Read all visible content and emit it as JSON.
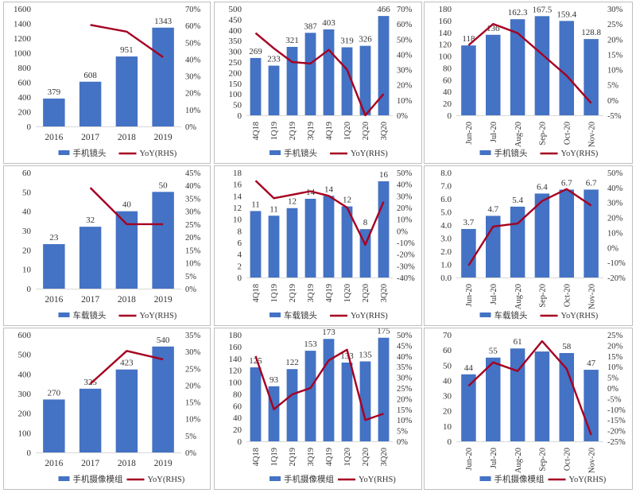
{
  "colors": {
    "bar": "#4472C4",
    "line": "#A50021",
    "axis": "#d9d9d9",
    "text": "#333333"
  },
  "chart_data": [
    {
      "type": "bar",
      "title": "",
      "xlabel": "",
      "ylabel": "",
      "categories": [
        "2016",
        "2017",
        "2018",
        "2019"
      ],
      "series": [
        {
          "name": "手机镜头",
          "kind": "bar",
          "axis": "left",
          "values": [
            379,
            608,
            951,
            1343
          ],
          "labels": [
            "379",
            "608",
            "951",
            "1343"
          ]
        },
        {
          "name": "YoY(RHS)",
          "kind": "line",
          "axis": "right",
          "values": [
            null,
            60.4,
            56.4,
            41.2
          ]
        }
      ],
      "ylim": [
        0,
        1600
      ],
      "yticks": [
        "0",
        "200",
        "400",
        "600",
        "800",
        "1000",
        "1200",
        "1400",
        "1600"
      ],
      "y2lim": [
        0,
        70
      ],
      "y2ticks": [
        "0%",
        "10%",
        "20%",
        "30%",
        "40%",
        "50%",
        "60%",
        "70%"
      ],
      "rotate_x": false,
      "legend": "bottom"
    },
    {
      "type": "bar",
      "title": "",
      "xlabel": "",
      "ylabel": "",
      "categories": [
        "4Q18",
        "1Q19",
        "2Q19",
        "3Q19",
        "4Q19",
        "1Q20",
        "2Q20",
        "3Q20"
      ],
      "series": [
        {
          "name": "手机镜头",
          "kind": "bar",
          "axis": "left",
          "values": [
            269,
            233,
            321,
            387,
            403,
            319,
            326,
            466
          ],
          "labels": [
            "269",
            "233",
            "321",
            "387",
            "403",
            "319",
            "326",
            "466"
          ]
        },
        {
          "name": "YoY(RHS)",
          "kind": "line",
          "axis": "right",
          "values": [
            54,
            44,
            35,
            34,
            43,
            30,
            0,
            14
          ]
        }
      ],
      "ylim": [
        0,
        500
      ],
      "yticks": [
        "0",
        "50",
        "100",
        "150",
        "200",
        "250",
        "300",
        "350",
        "400",
        "450",
        "500"
      ],
      "y2lim": [
        0,
        70
      ],
      "y2ticks": [
        "0%",
        "10%",
        "20%",
        "30%",
        "40%",
        "50%",
        "60%",
        "70%"
      ],
      "rotate_x": true,
      "legend": "bottom"
    },
    {
      "type": "bar",
      "title": "",
      "xlabel": "",
      "ylabel": "",
      "categories": [
        "Jun-20",
        "Jul-20",
        "Aug-20",
        "Sep-20",
        "Oct-20",
        "Nov-20"
      ],
      "series": [
        {
          "name": "手机镜头",
          "kind": "bar",
          "axis": "left",
          "values": [
            118,
            136,
            162.3,
            167.5,
            159.4,
            128.8
          ],
          "labels": [
            "118",
            "136",
            "162.3",
            "167.5",
            "159.4",
            "128.8"
          ]
        },
        {
          "name": "YoY(RHS)",
          "kind": "line",
          "axis": "right",
          "values": [
            18,
            25,
            22,
            15,
            8,
            -1
          ]
        }
      ],
      "ylim": [
        0,
        180
      ],
      "yticks": [
        "0",
        "20",
        "40",
        "60",
        "80",
        "100",
        "120",
        "140",
        "160",
        "180"
      ],
      "y2lim": [
        -5,
        30
      ],
      "y2ticks": [
        "-5%",
        "0%",
        "5%",
        "10%",
        "15%",
        "20%",
        "25%",
        "30%"
      ],
      "rotate_x": true,
      "legend": "bottom"
    },
    {
      "type": "bar",
      "title": "",
      "xlabel": "",
      "ylabel": "",
      "categories": [
        "2016",
        "2017",
        "2018",
        "2019"
      ],
      "series": [
        {
          "name": "车载镜头",
          "kind": "bar",
          "axis": "left",
          "values": [
            23,
            32,
            40,
            50
          ],
          "labels": [
            "23",
            "32",
            "40",
            "50"
          ]
        },
        {
          "name": "YoY(RHS)",
          "kind": "line",
          "axis": "right",
          "values": [
            null,
            39.1,
            25,
            25
          ]
        }
      ],
      "ylim": [
        0,
        60
      ],
      "yticks": [
        "0",
        "10",
        "20",
        "30",
        "40",
        "50",
        "60"
      ],
      "y2lim": [
        0,
        45
      ],
      "y2ticks": [
        "0%",
        "5%",
        "10%",
        "15%",
        "20%",
        "25%",
        "30%",
        "35%",
        "40%",
        "45%"
      ],
      "rotate_x": false,
      "legend": "bottom"
    },
    {
      "type": "bar",
      "title": "",
      "xlabel": "",
      "ylabel": "",
      "categories": [
        "4Q18",
        "1Q19",
        "2Q19",
        "3Q19",
        "4Q19",
        "1Q20",
        "2Q20",
        "3Q20"
      ],
      "series": [
        {
          "name": "车载镜头",
          "kind": "bar",
          "axis": "left",
          "values": [
            11.4,
            10.6,
            11.9,
            13.5,
            14,
            12.2,
            8.3,
            16.5
          ],
          "labels": [
            "11",
            "11",
            "12",
            "14",
            "14",
            "12",
            "8",
            "16"
          ]
        },
        {
          "name": "YoY(RHS)",
          "kind": "line",
          "axis": "right",
          "values": [
            43,
            28,
            31,
            34,
            30,
            20,
            -12,
            25
          ]
        }
      ],
      "ylim": [
        0,
        18
      ],
      "yticks": [
        "0",
        "2",
        "4",
        "6",
        "8",
        "10",
        "12",
        "14",
        "16",
        "18"
      ],
      "y2lim": [
        -40,
        50
      ],
      "y2ticks": [
        "-40%",
        "-30%",
        "-20%",
        "-10%",
        "0%",
        "10%",
        "20%",
        "30%",
        "40%",
        "50%"
      ],
      "rotate_x": true,
      "legend": "bottom"
    },
    {
      "type": "bar",
      "title": "",
      "xlabel": "",
      "ylabel": "",
      "categories": [
        "Jun-20",
        "Jul-20",
        "Aug-20",
        "Sep-20",
        "Oct-20",
        "Nov-20"
      ],
      "series": [
        {
          "name": "车载镜头",
          "kind": "bar",
          "axis": "left",
          "values": [
            3.7,
            4.7,
            5.4,
            6.4,
            6.7,
            6.7
          ],
          "labels": [
            "3.7",
            "4.7",
            "5.4",
            "6.4",
            "6.7",
            "6.7"
          ]
        },
        {
          "name": "YoY(RHS)",
          "kind": "line",
          "axis": "right",
          "values": [
            -12,
            14,
            16,
            31,
            39,
            28
          ]
        }
      ],
      "ylim": [
        0,
        8
      ],
      "yticks": [
        "0.0",
        "1.0",
        "2.0",
        "3.0",
        "4.0",
        "5.0",
        "6.0",
        "7.0",
        "8.0"
      ],
      "y2lim": [
        -20,
        50
      ],
      "y2ticks": [
        "-20%",
        "-10%",
        "0%",
        "10%",
        "20%",
        "30%",
        "40%",
        "50%"
      ],
      "rotate_x": true,
      "legend": "bottom"
    },
    {
      "type": "bar",
      "title": "",
      "xlabel": "",
      "ylabel": "",
      "categories": [
        "2016",
        "2017",
        "2018",
        "2019"
      ],
      "series": [
        {
          "name": "手机摄像模组",
          "kind": "bar",
          "axis": "left",
          "values": [
            270,
            325,
            423,
            540
          ],
          "labels": [
            "270",
            "325",
            "423",
            "540"
          ]
        },
        {
          "name": "YoY(RHS)",
          "kind": "line",
          "axis": "right",
          "values": [
            null,
            20.4,
            30.2,
            27.7
          ]
        }
      ],
      "ylim": [
        0,
        600
      ],
      "yticks": [
        "0",
        "100",
        "200",
        "300",
        "400",
        "500",
        "600"
      ],
      "y2lim": [
        0,
        35
      ],
      "y2ticks": [
        "0%",
        "5%",
        "10%",
        "15%",
        "20%",
        "25%",
        "30%",
        "35%"
      ],
      "rotate_x": false,
      "legend": "bottom"
    },
    {
      "type": "bar",
      "title": "",
      "xlabel": "",
      "ylabel": "",
      "categories": [
        "4Q18",
        "1Q19",
        "2Q19",
        "3Q19",
        "4Q19",
        "1Q20",
        "2Q20",
        "3Q20"
      ],
      "series": [
        {
          "name": "手机摄像模组",
          "kind": "bar",
          "axis": "left",
          "values": [
            125,
            93,
            122,
            153,
            173,
            133,
            135,
            175
          ],
          "labels": [
            "125",
            "93",
            "122",
            "153",
            "173",
            "133",
            "135",
            "175"
          ]
        },
        {
          "name": "YoY(RHS)",
          "kind": "line",
          "axis": "right",
          "values": [
            40,
            15,
            22,
            25,
            38,
            43,
            10,
            13
          ]
        }
      ],
      "ylim": [
        0,
        180
      ],
      "yticks": [
        "0",
        "20",
        "40",
        "60",
        "80",
        "100",
        "120",
        "140",
        "160",
        "180"
      ],
      "y2lim": [
        0,
        50
      ],
      "y2ticks": [
        "0%",
        "5%",
        "10%",
        "15%",
        "20%",
        "25%",
        "30%",
        "35%",
        "40%",
        "45%",
        "50%"
      ],
      "rotate_x": true,
      "legend": "bottom"
    },
    {
      "type": "bar",
      "title": "",
      "xlabel": "",
      "ylabel": "",
      "categories": [
        "Jun-20",
        "Jul-20",
        "Aug-20",
        "Sep-20",
        "Oct-20",
        "Nov-20"
      ],
      "series": [
        {
          "name": "手机摄像模组",
          "kind": "bar",
          "axis": "left",
          "values": [
            44,
            55,
            61,
            59,
            58,
            47
          ],
          "labels": [
            "44",
            "55",
            "61",
            "",
            "58",
            "47"
          ]
        },
        {
          "name": "YoY(RHS)",
          "kind": "line",
          "axis": "right",
          "values": [
            1,
            12,
            8,
            22,
            9,
            -22
          ]
        }
      ],
      "ylim": [
        0,
        70
      ],
      "yticks": [
        "0",
        "10",
        "20",
        "30",
        "40",
        "50",
        "60",
        "70"
      ],
      "y2lim": [
        -25,
        25
      ],
      "y2ticks": [
        "-25%",
        "-20%",
        "-15%",
        "-10%",
        "-5%",
        "0%",
        "5%",
        "10%",
        "15%",
        "20%",
        "25%"
      ],
      "rotate_x": true,
      "legend": "bottom"
    }
  ]
}
